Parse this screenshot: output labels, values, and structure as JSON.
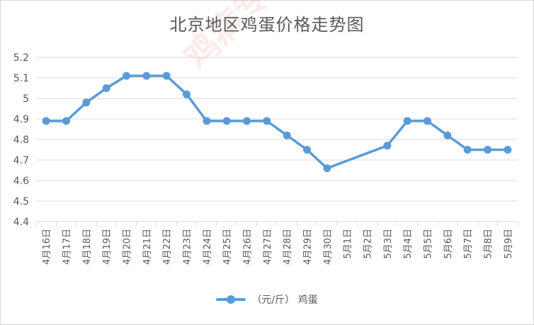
{
  "chart_data": {
    "type": "line",
    "title": "北京地区鸡蛋价格走势图",
    "categories": [
      "4月16日",
      "4月17日",
      "4月18日",
      "4月19日",
      "4月20日",
      "4月21日",
      "4月22日",
      "4月23日",
      "4月24日",
      "4月25日",
      "4月26日",
      "4月27日",
      "4月28日",
      "4月29日",
      "4月30日",
      "5月1日",
      "5月2日",
      "5月3日",
      "5月4日",
      "5月5日",
      "5月6日",
      "5月7日",
      "5月8日",
      "5月9日"
    ],
    "series": [
      {
        "name": "（元/斤） 鸡蛋",
        "values": [
          4.89,
          4.89,
          4.98,
          5.05,
          5.11,
          5.11,
          5.11,
          5.02,
          4.89,
          4.89,
          4.89,
          4.89,
          4.82,
          4.75,
          4.66,
          null,
          null,
          4.77,
          4.89,
          4.89,
          4.82,
          4.75,
          4.75,
          4.75
        ]
      }
    ],
    "ylim": [
      4.4,
      5.2
    ],
    "yticks": [
      "4.4",
      "4.5",
      "4.6",
      "4.7",
      "4.8",
      "4.9",
      "5",
      "5.1",
      "5.2"
    ],
    "grid": true,
    "legend_position": "bottom",
    "line_color": "#5b9bd5",
    "watermark": "鸡病专业网"
  }
}
